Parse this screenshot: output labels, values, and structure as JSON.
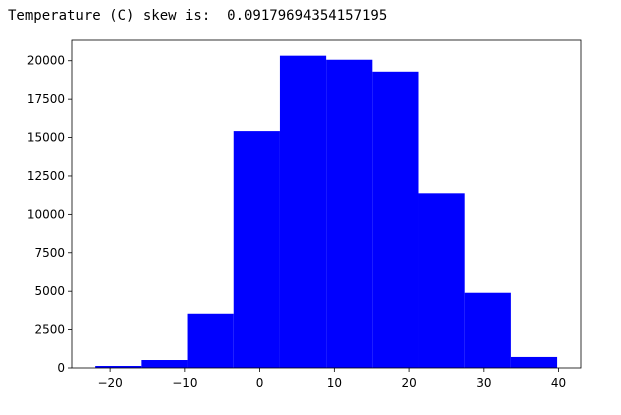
{
  "output": {
    "text": "Temperature (C) skew is:  0.09179694354157195"
  },
  "chart_data": {
    "type": "histogram",
    "color": "#0000ff",
    "bins": [
      -22.0,
      -15.82,
      -9.64,
      -3.46,
      2.72,
      8.9,
      15.08,
      21.26,
      27.44,
      33.62,
      39.8
    ],
    "values": [
      130,
      520,
      3530,
      15420,
      20330,
      20065,
      19280,
      11370,
      4900,
      720
    ],
    "xlim": [
      -25.1,
      43.0
    ],
    "xticks": [
      {
        "value": -20,
        "label": "−20"
      },
      {
        "value": -10,
        "label": "−10"
      },
      0,
      10,
      20,
      30,
      40
    ],
    "ylim": [
      0,
      21350
    ],
    "yticks": [
      0,
      2500,
      5000,
      7500,
      10000,
      12500,
      15000,
      17500,
      20000
    ],
    "grid": false
  }
}
